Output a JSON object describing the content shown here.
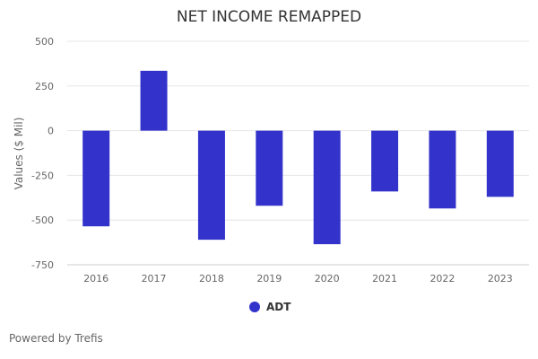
{
  "chart_data": {
    "type": "bar",
    "title": "NET INCOME REMAPPED",
    "ylabel": "Values ($ Mil)",
    "xlabel": "",
    "categories": [
      "2016",
      "2017",
      "2018",
      "2019",
      "2020",
      "2021",
      "2022",
      "2023"
    ],
    "series": [
      {
        "name": "ADT",
        "values": [
          -535,
          335,
          -610,
          -420,
          -635,
          -340,
          -435,
          -370
        ],
        "color": "#3333cc"
      }
    ],
    "ylim": [
      -750,
      500
    ],
    "yticks": [
      "500",
      "250",
      "0",
      "-250",
      "-500",
      "-750"
    ],
    "grid": true,
    "legend_position": "bottom-center"
  },
  "credit": "Powered by Trefis"
}
